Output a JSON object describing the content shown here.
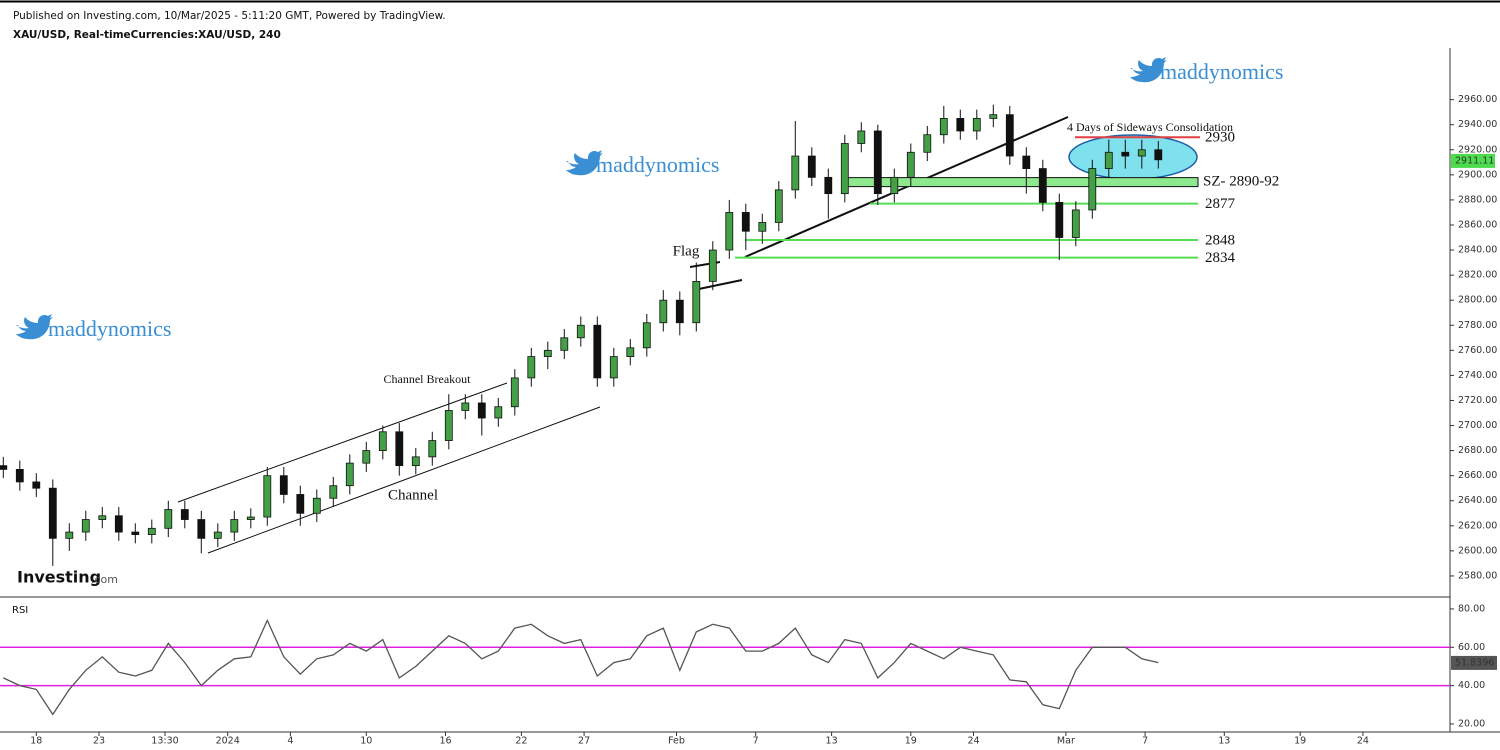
{
  "header": {
    "published": "Published on Investing.com, 10/Mar/2025 - 5:11:20 GMT, Powered by TradingView.",
    "symbol": "XAU/USD, Real-timeCurrencies:XAU/USD, 240"
  },
  "branding": {
    "watermarks": [
      "maddynomics",
      "maddynomics",
      "maddynomics"
    ],
    "logo": "Investing",
    "logo_suffix": ".com"
  },
  "chart_data": [
    {
      "type": "candlestick",
      "up_color": "#43a047",
      "down_color": "#111111",
      "x": [
        1,
        6,
        11,
        16,
        21,
        26,
        31,
        36,
        41,
        46,
        51,
        56,
        61,
        66,
        71,
        76,
        81,
        86,
        91,
        96,
        101,
        106,
        111,
        116,
        121,
        126,
        131,
        136,
        141,
        146,
        151,
        156,
        161,
        166,
        171,
        176,
        181,
        186,
        191,
        196,
        201,
        206,
        211,
        216,
        221,
        226,
        231,
        236,
        241,
        246,
        251,
        256,
        261,
        266,
        271,
        276,
        281,
        286,
        291,
        296,
        301,
        306,
        311,
        316,
        321,
        326,
        331,
        336,
        341,
        346,
        351
      ],
      "open": [
        2668,
        2665,
        2655,
        2650,
        2610,
        2615,
        2625,
        2628,
        2615,
        2613,
        2618,
        2633,
        2625,
        2610,
        2615,
        2625,
        2627,
        2660,
        2645,
        2630,
        2642,
        2652,
        2670,
        2680,
        2695,
        2668,
        2675,
        2688,
        2712,
        2718,
        2706,
        2715,
        2738,
        2755,
        2760,
        2770,
        2780,
        2738,
        2755,
        2762,
        2782,
        2800,
        2782,
        2815,
        2840,
        2870,
        2855,
        2862,
        2888,
        2915,
        2898,
        2885,
        2925,
        2935,
        2885,
        2898,
        2918,
        2932,
        2945,
        2935,
        2945,
        2948,
        2915,
        2905,
        2878,
        2850,
        2872,
        2905,
        2918,
        2915,
        2920
      ],
      "high": [
        2675,
        2672,
        2662,
        2657,
        2622,
        2632,
        2635,
        2635,
        2622,
        2625,
        2640,
        2640,
        2632,
        2622,
        2632,
        2634,
        2667,
        2667,
        2652,
        2649,
        2659,
        2677,
        2687,
        2700,
        2702,
        2682,
        2695,
        2725,
        2725,
        2725,
        2722,
        2745,
        2762,
        2767,
        2777,
        2787,
        2787,
        2762,
        2769,
        2789,
        2808,
        2807,
        2830,
        2847,
        2880,
        2877,
        2869,
        2895,
        2943,
        2922,
        2905,
        2932,
        2942,
        2940,
        2905,
        2925,
        2939,
        2955,
        2952,
        2952,
        2956,
        2955,
        2922,
        2912,
        2885,
        2879,
        2912,
        2928,
        2928,
        2928,
        2927
      ],
      "low": [
        2658,
        2648,
        2643,
        2588,
        2600,
        2608,
        2618,
        2608,
        2606,
        2606,
        2611,
        2618,
        2598,
        2603,
        2608,
        2618,
        2620,
        2638,
        2620,
        2623,
        2635,
        2645,
        2663,
        2673,
        2660,
        2661,
        2668,
        2681,
        2705,
        2692,
        2699,
        2708,
        2731,
        2745,
        2753,
        2763,
        2731,
        2731,
        2748,
        2755,
        2775,
        2772,
        2775,
        2808,
        2833,
        2840,
        2845,
        2855,
        2881,
        2891,
        2865,
        2878,
        2918,
        2876,
        2878,
        2891,
        2911,
        2925,
        2928,
        2928,
        2938,
        2908,
        2885,
        2871,
        2832,
        2843,
        2865,
        2898,
        2905,
        2905,
        2905
      ],
      "close": [
        2665,
        2655,
        2650,
        2610,
        2615,
        2625,
        2628,
        2615,
        2613,
        2618,
        2633,
        2625,
        2610,
        2615,
        2625,
        2627,
        2660,
        2645,
        2630,
        2642,
        2652,
        2670,
        2680,
        2695,
        2668,
        2675,
        2688,
        2712,
        2718,
        2706,
        2715,
        2738,
        2755,
        2760,
        2770,
        2780,
        2738,
        2755,
        2762,
        2782,
        2800,
        2782,
        2815,
        2840,
        2870,
        2855,
        2862,
        2888,
        2915,
        2898,
        2885,
        2925,
        2935,
        2885,
        2898,
        2918,
        2932,
        2945,
        2935,
        2945,
        2948,
        2915,
        2905,
        2878,
        2850,
        2872,
        2905,
        2918,
        2915,
        2920,
        2912
      ],
      "xlim": [
        0,
        440
      ],
      "ylim": [
        2564,
        2998
      ],
      "yticks": [
        {
          "value": 2580,
          "label": "2580.00"
        },
        {
          "value": 2600,
          "label": "2600.00"
        },
        {
          "value": 2620,
          "label": "2620.00"
        },
        {
          "value": 2640,
          "label": "2640.00"
        },
        {
          "value": 2660,
          "label": "2660.00"
        },
        {
          "value": 2680,
          "label": "2680.00"
        },
        {
          "value": 2700,
          "label": "2700.00"
        },
        {
          "value": 2720,
          "label": "2720.00"
        },
        {
          "value": 2740,
          "label": "2740.00"
        },
        {
          "value": 2760,
          "label": "2760.00"
        },
        {
          "value": 2780,
          "label": "2780.00"
        },
        {
          "value": 2800,
          "label": "2800.00"
        },
        {
          "value": 2820,
          "label": "2820.00"
        },
        {
          "value": 2840,
          "label": "2840.00"
        },
        {
          "value": 2860,
          "label": "2860.00"
        },
        {
          "value": 2880,
          "label": "2880.00"
        },
        {
          "value": 2900,
          "label": "2900.00"
        },
        {
          "value": 2920,
          "label": "2920.00"
        },
        {
          "value": 2940,
          "label": "2940.00"
        },
        {
          "value": 2960,
          "label": "2960.00"
        }
      ],
      "last_price": 2911.11,
      "last_price_color": "#4cdc4c",
      "levels": [
        2930,
        2877,
        2848,
        2834
      ],
      "level_colors": [
        "#e04040",
        "#55dd55",
        "#55dd55",
        "#55dd55"
      ],
      "zone": [
        2890,
        2892
      ],
      "zone_label": "SZ- 2890-92",
      "zone_color": "#8ee88e",
      "annotations": [
        "Flag",
        "Channel Breakout",
        "Channel",
        "4 Days of Sideways Consolidation"
      ]
    },
    {
      "type": "line",
      "title": "RSI",
      "color": "#555555",
      "x": [
        1,
        6,
        11,
        16,
        21,
        26,
        31,
        36,
        41,
        46,
        51,
        56,
        61,
        66,
        71,
        76,
        81,
        86,
        91,
        96,
        101,
        106,
        111,
        116,
        121,
        126,
        131,
        136,
        141,
        146,
        151,
        156,
        161,
        166,
        171,
        176,
        181,
        186,
        191,
        196,
        201,
        206,
        211,
        216,
        221,
        226,
        231,
        236,
        241,
        246,
        251,
        256,
        261,
        266,
        271,
        276,
        281,
        286,
        291,
        296,
        301,
        306,
        311,
        316,
        321,
        326,
        331,
        336,
        341,
        346,
        351
      ],
      "values": [
        44,
        40,
        38,
        25,
        38,
        48,
        55,
        47,
        45,
        48,
        62,
        52,
        40,
        48,
        54,
        55,
        74,
        55,
        46,
        54,
        56,
        62,
        58,
        64,
        44,
        50,
        58,
        66,
        62,
        54,
        58,
        70,
        72,
        66,
        62,
        64,
        45,
        52,
        54,
        66,
        70,
        48,
        68,
        72,
        70,
        58,
        58,
        62,
        70,
        56,
        52,
        64,
        62,
        44,
        52,
        62,
        58,
        54,
        60,
        58,
        56,
        43,
        42,
        30,
        28,
        48,
        60,
        60,
        60,
        54,
        52
      ],
      "last_value": 51.8396,
      "levels": [
        60,
        40
      ],
      "level_color": "#e020e0",
      "xlim": [
        0,
        440
      ],
      "ylim": [
        15.8,
        85.7
      ],
      "yticks": [
        {
          "value": 20,
          "label": "20.00"
        },
        {
          "value": 40,
          "label": "40.00"
        },
        {
          "value": 60,
          "label": "60.00"
        },
        {
          "value": 80,
          "label": "80.00"
        }
      ],
      "xticks": [
        {
          "value": 11,
          "label": "18"
        },
        {
          "value": 30,
          "label": "23"
        },
        {
          "value": 50,
          "label": "13:30"
        },
        {
          "value": 69,
          "label": "2024"
        },
        {
          "value": 88,
          "label": "4"
        },
        {
          "value": 111,
          "label": "10"
        },
        {
          "value": 135,
          "label": "16"
        },
        {
          "value": 158,
          "label": "22"
        },
        {
          "value": 177,
          "label": "27"
        },
        {
          "value": 205,
          "label": "Feb"
        },
        {
          "value": 229,
          "label": "7"
        },
        {
          "value": 252,
          "label": "13"
        },
        {
          "value": 276,
          "label": "19"
        },
        {
          "value": 295,
          "label": "24"
        },
        {
          "value": 323,
          "label": "Mar"
        },
        {
          "value": 347,
          "label": "7"
        },
        {
          "value": 371,
          "label": "13"
        },
        {
          "value": 394,
          "label": "19"
        },
        {
          "value": 413,
          "label": "24"
        }
      ]
    }
  ]
}
